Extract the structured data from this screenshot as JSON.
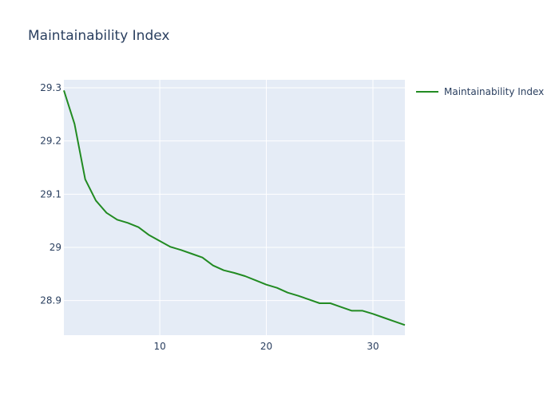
{
  "chart_data": {
    "type": "line",
    "title": "Maintainability Index",
    "xlabel": "",
    "ylabel": "",
    "xlim": [
      1,
      33
    ],
    "ylim": [
      28.835,
      29.315
    ],
    "xticks": [
      10,
      20,
      30
    ],
    "yticks": [
      28.9,
      29,
      29.1,
      29.2,
      29.3
    ],
    "ytick_labels": [
      "28.9",
      "29",
      "29.1",
      "29.2",
      "29.3"
    ],
    "grid": true,
    "legend_position": "top-right",
    "colors": {
      "line": "#228b22",
      "plot_bg": "#e5ecf6",
      "grid": "#ffffff",
      "text": "#2a3f5f"
    },
    "series": [
      {
        "name": "Maintainability Index",
        "x": [
          1,
          2,
          3,
          4,
          5,
          6,
          7,
          8,
          9,
          10,
          11,
          12,
          13,
          14,
          15,
          16,
          17,
          18,
          19,
          20,
          21,
          22,
          23,
          24,
          25,
          26,
          27,
          28,
          29,
          30,
          31,
          32,
          33
        ],
        "y": [
          29.295,
          29.232,
          29.128,
          29.088,
          29.065,
          29.052,
          29.046,
          29.038,
          29.023,
          29.012,
          29.001,
          28.995,
          28.988,
          28.981,
          28.966,
          28.957,
          28.952,
          28.946,
          28.938,
          28.93,
          28.924,
          28.915,
          28.909,
          28.902,
          28.895,
          28.895,
          28.888,
          28.881,
          28.881,
          28.875,
          28.868,
          28.861,
          28.854
        ]
      }
    ]
  }
}
